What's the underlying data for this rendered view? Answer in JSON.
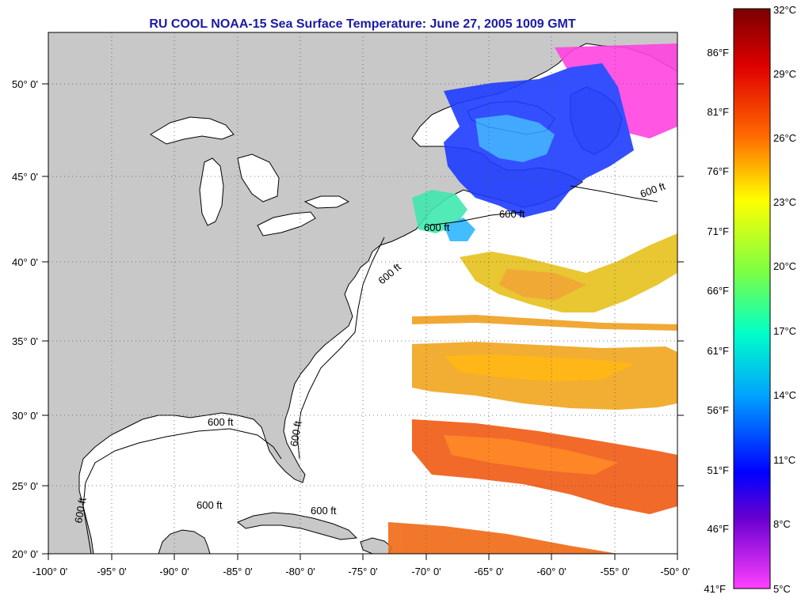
{
  "title": "RU COOL  NOAA-15  Sea Surface Temperature:  June 27, 2005 1009 GMT",
  "lat_labels": [
    "50° 0'",
    "45° 0'",
    "40° 0'",
    "35° 0'",
    "30° 0'",
    "25° 0'",
    "20° 0'"
  ],
  "lon_labels": [
    "-100° 0'",
    "-95° 0'",
    "-90° 0'",
    "-85° 0'",
    "-80° 0'",
    "-75° 0'",
    "-70° 0'",
    "-65° 0'",
    "-60° 0'",
    "-55° 0'",
    "-50° 0'"
  ],
  "contour_labels": [
    "600 ft",
    "600 ft",
    "600 ft",
    "600 ft",
    "600 ft",
    "600 ft",
    "600 ft",
    "600 ft",
    "600 ft"
  ],
  "colorbar": {
    "celsius": [
      "32°C",
      "29°C",
      "26°C",
      "23°C",
      "20°C",
      "17°C",
      "14°C",
      "11°C",
      "8°C",
      "5°C"
    ],
    "fahrenheit": [
      "86°F",
      "81°F",
      "76°F",
      "71°F",
      "66°F",
      "61°F",
      "56°F",
      "51°F",
      "46°F",
      "41°F"
    ]
  },
  "colors": {
    "land": "#c8c8c8",
    "ocean": "#ffffff",
    "title": "#1a1aa6",
    "coast": "#000000"
  }
}
